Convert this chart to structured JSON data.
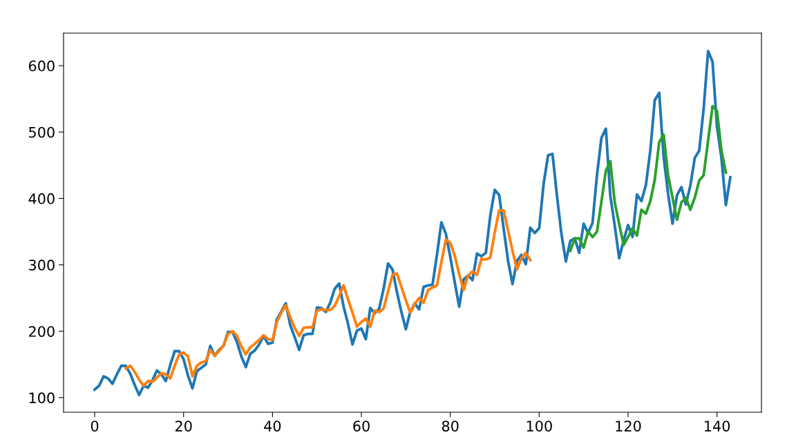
{
  "chart_data": {
    "type": "line",
    "xlim": [
      -7,
      150
    ],
    "ylim": [
      78,
      649
    ],
    "xticks": [
      0,
      20,
      40,
      60,
      80,
      100,
      120,
      140
    ],
    "yticks": [
      100,
      200,
      300,
      400,
      500,
      600
    ],
    "grid": false,
    "series": [
      {
        "color": "#1f77b4",
        "x": [
          0,
          1,
          2,
          3,
          4,
          5,
          6,
          7,
          8,
          9,
          10,
          11,
          12,
          13,
          14,
          15,
          16,
          17,
          18,
          19,
          20,
          21,
          22,
          23,
          24,
          25,
          26,
          27,
          28,
          29,
          30,
          31,
          32,
          33,
          34,
          35,
          36,
          37,
          38,
          39,
          40,
          41,
          42,
          43,
          44,
          45,
          46,
          47,
          48,
          49,
          50,
          51,
          52,
          53,
          54,
          55,
          56,
          57,
          58,
          59,
          60,
          61,
          62,
          63,
          64,
          65,
          66,
          67,
          68,
          69,
          70,
          71,
          72,
          73,
          74,
          75,
          76,
          77,
          78,
          79,
          80,
          81,
          82,
          83,
          84,
          85,
          86,
          87,
          88,
          89,
          90,
          91,
          92,
          93,
          94,
          95,
          96,
          97,
          98,
          99,
          100,
          101,
          102,
          103,
          104,
          105,
          106,
          107,
          108,
          109,
          110,
          111,
          112,
          113,
          114,
          115,
          116,
          117,
          118,
          119,
          120,
          121,
          122,
          123,
          124,
          125,
          126,
          127,
          128,
          129,
          130,
          131,
          132,
          133,
          134,
          135,
          136,
          137,
          138,
          139,
          140,
          141,
          142,
          143
        ],
        "values": [
          112,
          118,
          132,
          129,
          121,
          135,
          148,
          148,
          136,
          119,
          104,
          118,
          115,
          126,
          141,
          135,
          125,
          149,
          170,
          170,
          158,
          133,
          114,
          140,
          145,
          150,
          178,
          163,
          172,
          178,
          199,
          199,
          184,
          162,
          146,
          166,
          171,
          180,
          193,
          181,
          183,
          218,
          230,
          242,
          209,
          191,
          172,
          194,
          196,
          196,
          236,
          235,
          229,
          243,
          264,
          272,
          237,
          211,
          180,
          201,
          204,
          188,
          235,
          227,
          234,
          264,
          302,
          293,
          259,
          229,
          203,
          229,
          242,
          233,
          267,
          269,
          270,
          315,
          364,
          347,
          312,
          274,
          237,
          278,
          284,
          277,
          317,
          313,
          318,
          374,
          413,
          405,
          355,
          306,
          271,
          306,
          315,
          301,
          356,
          348,
          355,
          422,
          465,
          467,
          404,
          347,
          305,
          336,
          340,
          318,
          362,
          348,
          363,
          435,
          491,
          505,
          404,
          359,
          310,
          337,
          360,
          342,
          406,
          396,
          420,
          472,
          548,
          559,
          463,
          407,
          362,
          405,
          417,
          391,
          419,
          461,
          472,
          535,
          622,
          606,
          508,
          461,
          390,
          432
        ]
      },
      {
        "color": "#ff7f0e",
        "x": [
          7,
          8,
          9,
          10,
          11,
          12,
          13,
          14,
          15,
          16,
          17,
          18,
          19,
          20,
          21,
          22,
          23,
          24,
          25,
          26,
          27,
          28,
          29,
          30,
          31,
          32,
          33,
          34,
          35,
          36,
          37,
          38,
          39,
          40,
          41,
          42,
          43,
          44,
          45,
          46,
          47,
          48,
          49,
          50,
          51,
          52,
          53,
          54,
          55,
          56,
          57,
          58,
          59,
          60,
          61,
          62,
          63,
          64,
          65,
          66,
          67,
          68,
          69,
          70,
          71,
          72,
          73,
          74,
          75,
          76,
          77,
          78,
          79,
          80,
          81,
          82,
          83,
          84,
          85,
          86,
          87,
          88,
          89,
          90,
          91,
          92,
          93,
          94,
          95,
          96,
          97,
          98
        ],
        "values": [
          144,
          148,
          139,
          127,
          118,
          125,
          124,
          130,
          137,
          135,
          129,
          148,
          165,
          168,
          162,
          132,
          148,
          153,
          155,
          172,
          163,
          170,
          179,
          196,
          200,
          193,
          177,
          165,
          176,
          181,
          187,
          194,
          188,
          187,
          214,
          228,
          239,
          221,
          205,
          193,
          205,
          206,
          206,
          231,
          233,
          232,
          232,
          238,
          253,
          269,
          248,
          228,
          207,
          214,
          219,
          207,
          231,
          229,
          234,
          260,
          285,
          287,
          267,
          247,
          228,
          241,
          250,
          243,
          262,
          266,
          269,
          304,
          338,
          333,
          314,
          286,
          262,
          284,
          290,
          285,
          309,
          308,
          311,
          349,
          382,
          382,
          352,
          321,
          293,
          310,
          318,
          307
        ]
      },
      {
        "color": "#2ca02c",
        "x": [
          107,
          108,
          109,
          110,
          111,
          112,
          113,
          114,
          115,
          116,
          117,
          118,
          119,
          120,
          121,
          122,
          123,
          124,
          125,
          126,
          127,
          128,
          129,
          130,
          131,
          132,
          133,
          134,
          135,
          136,
          137,
          138,
          139,
          140,
          141,
          142
        ],
        "values": [
          321,
          340,
          340,
          326,
          350,
          342,
          350,
          395,
          442,
          456,
          394,
          361,
          330,
          342,
          355,
          344,
          383,
          377,
          396,
          428,
          485,
          496,
          435,
          401,
          368,
          394,
          401,
          383,
          401,
          427,
          435,
          487,
          539,
          532,
          472,
          439
        ]
      }
    ]
  }
}
